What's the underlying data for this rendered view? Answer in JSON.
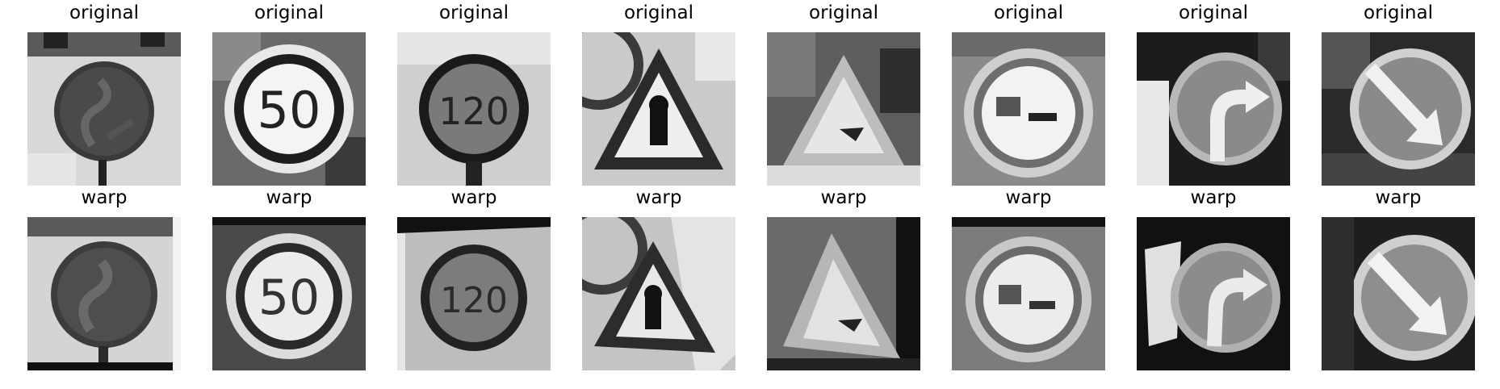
{
  "figure": {
    "rows": [
      {
        "row_name": "original",
        "cells": [
          {
            "title": "original",
            "sign": "double-curve"
          },
          {
            "title": "original",
            "sign": "speed-limit",
            "number": "50"
          },
          {
            "title": "original",
            "sign": "speed-limit",
            "number": "120"
          },
          {
            "title": "original",
            "sign": "warning-triangle"
          },
          {
            "title": "original",
            "sign": "warning-triangle-alt"
          },
          {
            "title": "original",
            "sign": "no-overtaking"
          },
          {
            "title": "original",
            "sign": "turn-right"
          },
          {
            "title": "original",
            "sign": "keep-right"
          }
        ]
      },
      {
        "row_name": "warp",
        "cells": [
          {
            "title": "warp",
            "sign": "double-curve"
          },
          {
            "title": "warp",
            "sign": "speed-limit",
            "number": "50"
          },
          {
            "title": "warp",
            "sign": "speed-limit",
            "number": "120"
          },
          {
            "title": "warp",
            "sign": "warning-triangle"
          },
          {
            "title": "warp",
            "sign": "warning-triangle-alt"
          },
          {
            "title": "warp",
            "sign": "no-overtaking"
          },
          {
            "title": "warp",
            "sign": "turn-right"
          },
          {
            "title": "warp",
            "sign": "keep-right"
          }
        ]
      }
    ]
  }
}
